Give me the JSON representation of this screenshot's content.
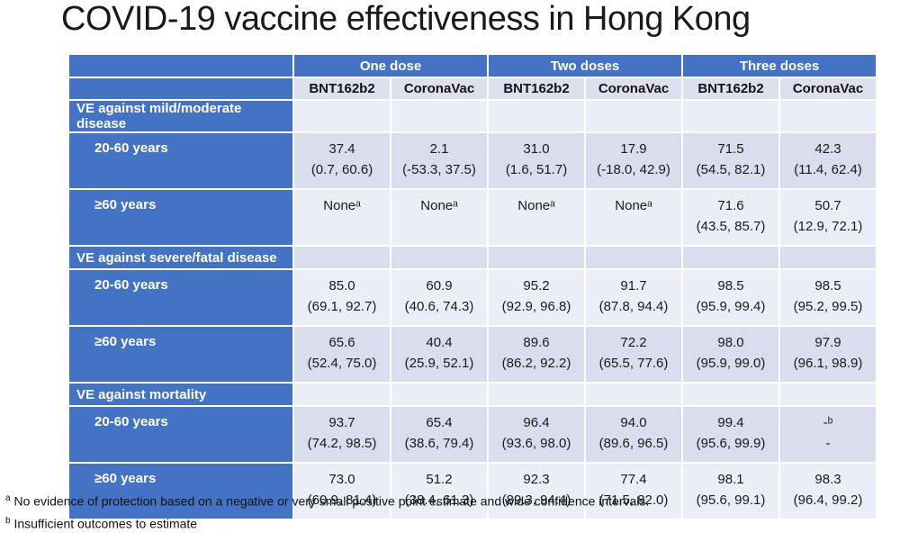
{
  "title": "COVID-19 vaccine effectiveness in Hong Kong",
  "colors": {
    "accent_blue": "#4472C4",
    "band_dark": "#D9DDED",
    "band_light": "#ECEEF7",
    "background": "#FFFFFF"
  },
  "chart_data": {
    "type": "table",
    "title": "COVID-19 vaccine effectiveness in Hong Kong",
    "dose_groups": [
      "One dose",
      "Two doses",
      "Three doses"
    ],
    "columns": [
      "BNT162b2",
      "CoronaVac",
      "BNT162b2",
      "CoronaVac",
      "BNT162b2",
      "CoronaVac"
    ],
    "sections": [
      {
        "label": "VE against mild/moderate disease",
        "rows": [
          {
            "label": "20-60 years",
            "cells": [
              {
                "v": "37.4",
                "ci": "(0.7, 60.6)"
              },
              {
                "v": "2.1",
                "ci": "(-53.3, 37.5)"
              },
              {
                "v": "31.0",
                "ci": "(1.6, 51.7)"
              },
              {
                "v": "17.9",
                "ci": "(-18.0, 42.9)"
              },
              {
                "v": "71.5",
                "ci": "(54.5, 82.1)"
              },
              {
                "v": "42.3",
                "ci": "(11.4, 62.4)"
              }
            ]
          },
          {
            "label": "≥60 years",
            "cells": [
              {
                "v": "Noneᵃ",
                "ci": ""
              },
              {
                "v": "Noneᵃ",
                "ci": ""
              },
              {
                "v": "Noneᵃ",
                "ci": ""
              },
              {
                "v": "Noneᵃ",
                "ci": ""
              },
              {
                "v": "71.6",
                "ci": "(43.5, 85.7)"
              },
              {
                "v": "50.7",
                "ci": "(12.9, 72.1)"
              }
            ]
          }
        ]
      },
      {
        "label": "VE against severe/fatal disease",
        "rows": [
          {
            "label": "20-60 years",
            "cells": [
              {
                "v": "85.0",
                "ci": "(69.1, 92.7)"
              },
              {
                "v": "60.9",
                "ci": "(40.6, 74.3)"
              },
              {
                "v": "95.2",
                "ci": "(92.9, 96.8)"
              },
              {
                "v": "91.7",
                "ci": "(87.8, 94.4)"
              },
              {
                "v": "98.5",
                "ci": "(95.9, 99.4)"
              },
              {
                "v": "98.5",
                "ci": "(95.2, 99.5)"
              }
            ]
          },
          {
            "label": "≥60 years",
            "cells": [
              {
                "v": "65.6",
                "ci": "(52.4, 75.0)"
              },
              {
                "v": "40.4",
                "ci": "(25.9, 52.1)"
              },
              {
                "v": "89.6",
                "ci": "(86.2, 92.2)"
              },
              {
                "v": "72.2",
                "ci": "(65.5, 77.6)"
              },
              {
                "v": "98.0",
                "ci": "(95.9, 99.0)"
              },
              {
                "v": "97.9",
                "ci": "(96.1, 98.9)"
              }
            ]
          }
        ]
      },
      {
        "label": "VE against mortality",
        "rows": [
          {
            "label": "20-60 years",
            "cells": [
              {
                "v": "93.7",
                "ci": "(74.2, 98.5)"
              },
              {
                "v": "65.4",
                "ci": "(38.6, 79.4)"
              },
              {
                "v": "96.4",
                "ci": "(93.6, 98.0)"
              },
              {
                "v": "94.0",
                "ci": "(89.6, 96.5)"
              },
              {
                "v": "99.4",
                "ci": "(95.6, 99.9)"
              },
              {
                "v": "-ᵇ",
                "ci": "-"
              }
            ]
          },
          {
            "label": "≥60 years",
            "cells": [
              {
                "v": "73.0",
                "ci": "(60.9, 81.4)"
              },
              {
                "v": "51.2",
                "ci": "(38.4, 61.3)"
              },
              {
                "v": "92.3",
                "ci": "(89.3, 94.4)"
              },
              {
                "v": "77.4",
                "ci": "(71.5, 82.0)"
              },
              {
                "v": "98.1",
                "ci": "(95.6, 99.1)"
              },
              {
                "v": "98.3",
                "ci": "(96.4, 99.2)"
              }
            ]
          }
        ]
      }
    ],
    "footnotes": [
      {
        "marker": "a",
        "text": "No evidence of protection based on a negative or very small positive point estimate and wide confidence intervals."
      },
      {
        "marker": "b",
        "text": "Insufficient outcomes to estimate"
      }
    ]
  }
}
